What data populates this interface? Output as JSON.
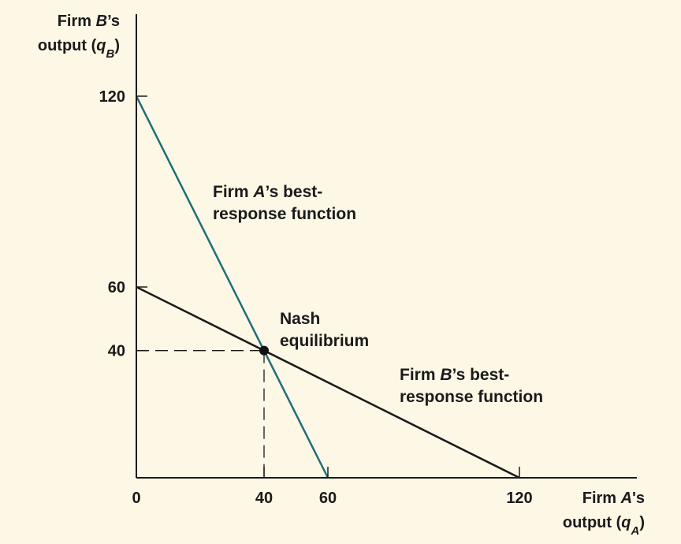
{
  "chart_data": {
    "type": "line",
    "xlim": [
      0,
      150
    ],
    "ylim": [
      0,
      150
    ],
    "x_ticks": [
      0,
      40,
      60,
      120
    ],
    "x_tick_labels": [
      "0",
      "40",
      "60",
      "120"
    ],
    "y_ticks": [
      40,
      60,
      120
    ],
    "y_tick_labels": [
      "40",
      "60",
      "120"
    ],
    "xlabel": {
      "line1": {
        "pre": "Firm ",
        "italic": "A",
        "post": "'s"
      },
      "line2": {
        "pre": "output (",
        "italic": "q",
        "sub": "A",
        "post": ")"
      }
    },
    "ylabel": {
      "line1": {
        "pre": "Firm ",
        "italic": "B",
        "post": "’s"
      },
      "line2": {
        "pre": "output (",
        "italic": "q",
        "sub": "B",
        "post": ")"
      }
    },
    "series": [
      {
        "points": [
          [
            0,
            120
          ],
          [
            60,
            0
          ]
        ],
        "color": "#1f6f7a",
        "label": {
          "line1": {
            "pre": "Firm ",
            "italic": "A",
            "post": "’s best-"
          },
          "line2": {
            "pre": "response function",
            "italic": "",
            "post": ""
          }
        }
      },
      {
        "points": [
          [
            0,
            60
          ],
          [
            120,
            0
          ]
        ],
        "color": "#1a1a1a",
        "label": {
          "line1": {
            "pre": "Firm ",
            "italic": "B",
            "post": "’s best-"
          },
          "line2": {
            "pre": "response function",
            "italic": "",
            "post": ""
          }
        }
      }
    ],
    "equilibrium": {
      "x": 40,
      "y": 40,
      "label_lines": [
        "Nash",
        "equilibrium"
      ]
    },
    "grid": false,
    "legend": "none"
  }
}
